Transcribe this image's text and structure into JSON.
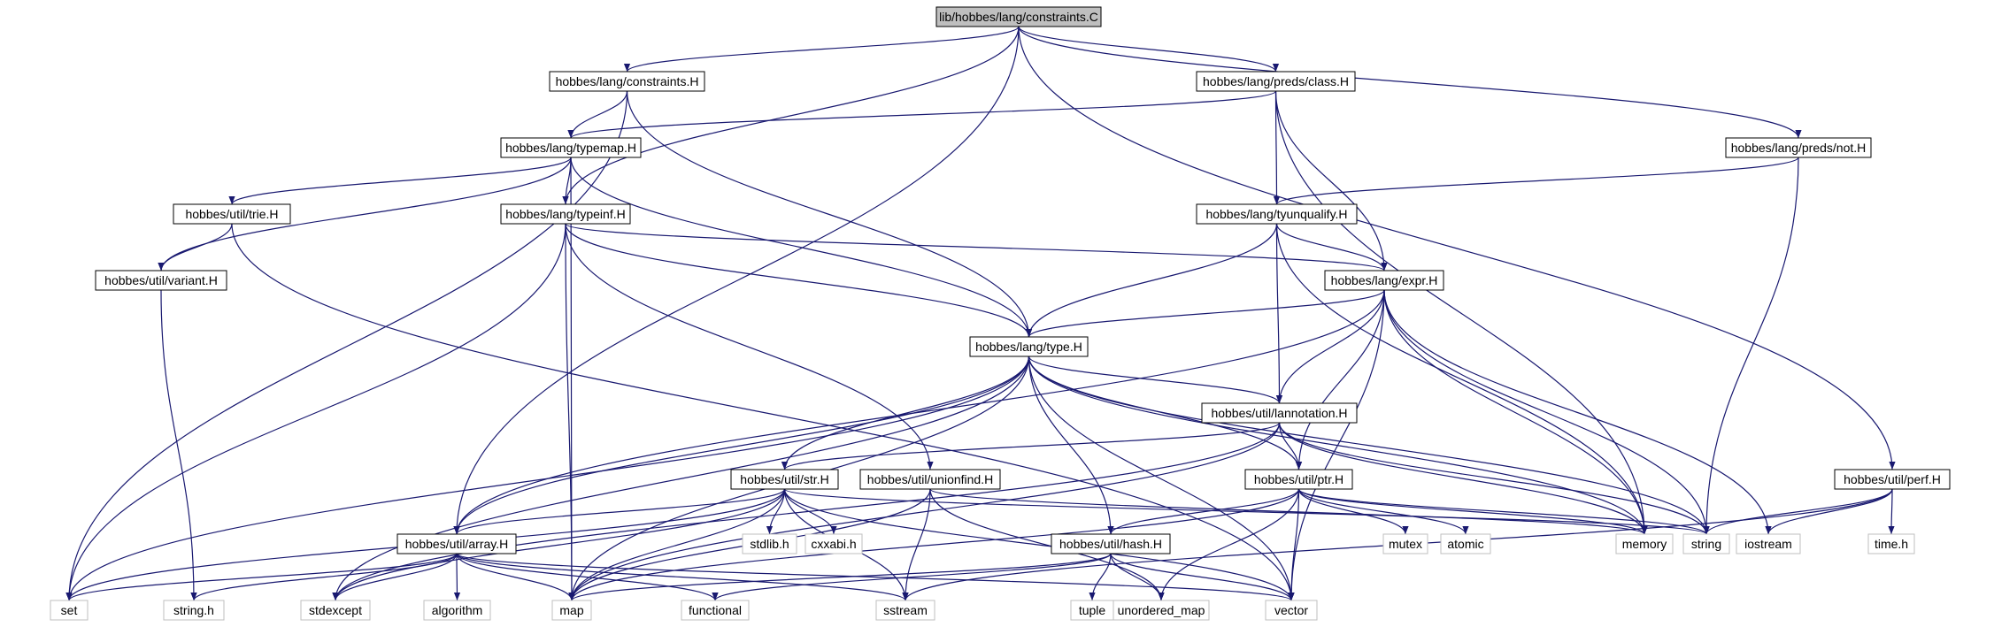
{
  "graph": {
    "nodes": [
      {
        "id": "root",
        "label": "lib/hobbes/lang/constraints.C",
        "kind": "root"
      },
      {
        "id": "constraintsH",
        "label": "hobbes/lang/constraints.H",
        "kind": "internal"
      },
      {
        "id": "predsClass",
        "label": "hobbes/lang/preds/class.H",
        "kind": "internal"
      },
      {
        "id": "predsNot",
        "label": "hobbes/lang/preds/not.H",
        "kind": "internal"
      },
      {
        "id": "typemap",
        "label": "hobbes/lang/typemap.H",
        "kind": "internal"
      },
      {
        "id": "trie",
        "label": "hobbes/util/trie.H",
        "kind": "internal"
      },
      {
        "id": "typeinf",
        "label": "hobbes/lang/typeinf.H",
        "kind": "internal"
      },
      {
        "id": "variant",
        "label": "hobbes/util/variant.H",
        "kind": "internal"
      },
      {
        "id": "tyunqualify",
        "label": "hobbes/lang/tyunqualify.H",
        "kind": "internal"
      },
      {
        "id": "expr",
        "label": "hobbes/lang/expr.H",
        "kind": "internal"
      },
      {
        "id": "type",
        "label": "hobbes/lang/type.H",
        "kind": "internal"
      },
      {
        "id": "lannotation",
        "label": "hobbes/util/lannotation.H",
        "kind": "internal"
      },
      {
        "id": "str",
        "label": "hobbes/util/str.H",
        "kind": "internal"
      },
      {
        "id": "unionfind",
        "label": "hobbes/util/unionfind.H",
        "kind": "internal"
      },
      {
        "id": "ptr",
        "label": "hobbes/util/ptr.H",
        "kind": "internal"
      },
      {
        "id": "perf",
        "label": "hobbes/util/perf.H",
        "kind": "internal"
      },
      {
        "id": "array",
        "label": "hobbes/util/array.H",
        "kind": "internal"
      },
      {
        "id": "hash",
        "label": "hobbes/util/hash.H",
        "kind": "internal"
      },
      {
        "id": "set",
        "label": "set",
        "kind": "external"
      },
      {
        "id": "stringh",
        "label": "string.h",
        "kind": "external"
      },
      {
        "id": "stdexcept",
        "label": "stdexcept",
        "kind": "external"
      },
      {
        "id": "algorithm",
        "label": "algorithm",
        "kind": "external"
      },
      {
        "id": "map",
        "label": "map",
        "kind": "external"
      },
      {
        "id": "functional",
        "label": "functional",
        "kind": "external"
      },
      {
        "id": "sstream",
        "label": "sstream",
        "kind": "external"
      },
      {
        "id": "tuple",
        "label": "tuple",
        "kind": "external"
      },
      {
        "id": "unordered_map",
        "label": "unordered_map",
        "kind": "external"
      },
      {
        "id": "vector",
        "label": "vector",
        "kind": "external"
      },
      {
        "id": "stdlibh",
        "label": "stdlib.h",
        "kind": "external"
      },
      {
        "id": "cxxabih",
        "label": "cxxabi.h",
        "kind": "external"
      },
      {
        "id": "mutex",
        "label": "mutex",
        "kind": "external"
      },
      {
        "id": "atomic",
        "label": "atomic",
        "kind": "external"
      },
      {
        "id": "memory",
        "label": "memory",
        "kind": "external"
      },
      {
        "id": "string",
        "label": "string",
        "kind": "external"
      },
      {
        "id": "iostream",
        "label": "iostream",
        "kind": "external"
      },
      {
        "id": "timeh",
        "label": "time.h",
        "kind": "external"
      }
    ],
    "edges": [
      [
        "root",
        "constraintsH"
      ],
      [
        "root",
        "predsClass"
      ],
      [
        "root",
        "predsNot"
      ],
      [
        "root",
        "typeinf"
      ],
      [
        "root",
        "array"
      ],
      [
        "root",
        "perf"
      ],
      [
        "constraintsH",
        "typemap"
      ],
      [
        "constraintsH",
        "type"
      ],
      [
        "constraintsH",
        "set"
      ],
      [
        "predsClass",
        "typemap"
      ],
      [
        "predsClass",
        "tyunqualify"
      ],
      [
        "predsClass",
        "expr"
      ],
      [
        "predsClass",
        "memory"
      ],
      [
        "predsNot",
        "tyunqualify"
      ],
      [
        "predsNot",
        "string"
      ],
      [
        "typemap",
        "trie"
      ],
      [
        "typemap",
        "typeinf"
      ],
      [
        "typemap",
        "variant"
      ],
      [
        "typemap",
        "type"
      ],
      [
        "typemap",
        "map"
      ],
      [
        "trie",
        "variant"
      ],
      [
        "trie",
        "vector"
      ],
      [
        "variant",
        "stringh"
      ],
      [
        "typeinf",
        "expr"
      ],
      [
        "typeinf",
        "type"
      ],
      [
        "typeinf",
        "unionfind"
      ],
      [
        "typeinf",
        "set"
      ],
      [
        "typeinf",
        "map"
      ],
      [
        "tyunqualify",
        "expr"
      ],
      [
        "tyunqualify",
        "type"
      ],
      [
        "tyunqualify",
        "lannotation"
      ],
      [
        "tyunqualify",
        "memory"
      ],
      [
        "expr",
        "type"
      ],
      [
        "expr",
        "lannotation"
      ],
      [
        "expr",
        "ptr"
      ],
      [
        "expr",
        "array"
      ],
      [
        "expr",
        "memory"
      ],
      [
        "expr",
        "string"
      ],
      [
        "expr",
        "iostream"
      ],
      [
        "expr",
        "vector"
      ],
      [
        "type",
        "lannotation"
      ],
      [
        "type",
        "str"
      ],
      [
        "type",
        "ptr"
      ],
      [
        "type",
        "array"
      ],
      [
        "type",
        "hash"
      ],
      [
        "type",
        "set"
      ],
      [
        "type",
        "map"
      ],
      [
        "type",
        "stdexcept"
      ],
      [
        "type",
        "vector"
      ],
      [
        "type",
        "memory"
      ],
      [
        "type",
        "string"
      ],
      [
        "lannotation",
        "str"
      ],
      [
        "lannotation",
        "ptr"
      ],
      [
        "lannotation",
        "string"
      ],
      [
        "lannotation",
        "memory"
      ],
      [
        "lannotation",
        "map"
      ],
      [
        "lannotation",
        "stdexcept"
      ],
      [
        "str",
        "array"
      ],
      [
        "str",
        "stdlibh"
      ],
      [
        "str",
        "cxxabih"
      ],
      [
        "str",
        "map"
      ],
      [
        "str",
        "set"
      ],
      [
        "str",
        "sstream"
      ],
      [
        "str",
        "vector"
      ],
      [
        "str",
        "string"
      ],
      [
        "str",
        "stdexcept"
      ],
      [
        "unionfind",
        "map"
      ],
      [
        "unionfind",
        "sstream"
      ],
      [
        "unionfind",
        "unordered_map"
      ],
      [
        "unionfind",
        "memory"
      ],
      [
        "ptr",
        "hash"
      ],
      [
        "ptr",
        "mutex"
      ],
      [
        "ptr",
        "atomic"
      ],
      [
        "ptr",
        "memory"
      ],
      [
        "ptr",
        "string"
      ],
      [
        "ptr",
        "map"
      ],
      [
        "ptr",
        "unordered_map"
      ],
      [
        "ptr",
        "vector"
      ],
      [
        "perf",
        "string"
      ],
      [
        "perf",
        "iostream"
      ],
      [
        "perf",
        "timeh"
      ],
      [
        "perf",
        "sstream"
      ],
      [
        "array",
        "set"
      ],
      [
        "array",
        "stringh"
      ],
      [
        "array",
        "stdexcept"
      ],
      [
        "array",
        "algorithm"
      ],
      [
        "array",
        "map"
      ],
      [
        "array",
        "functional"
      ],
      [
        "array",
        "sstream"
      ],
      [
        "array",
        "vector"
      ],
      [
        "hash",
        "functional"
      ],
      [
        "hash",
        "tuple"
      ],
      [
        "hash",
        "unordered_map"
      ],
      [
        "hash",
        "vector"
      ],
      [
        "hash",
        "map"
      ]
    ]
  },
  "colors": {
    "edge": "#191970",
    "internal_border": "#000000",
    "external_border": "#bfbfbf",
    "root_fill": "#bfbfbf",
    "node_fill": "#ffffff",
    "text": "#000000"
  }
}
